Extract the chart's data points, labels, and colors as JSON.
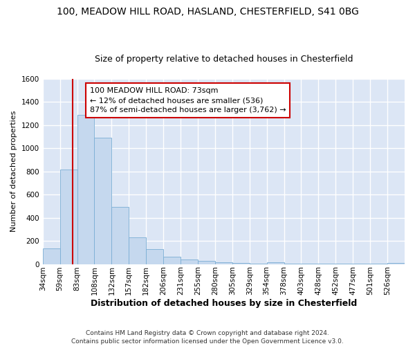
{
  "title_line1": "100, MEADOW HILL ROAD, HASLAND, CHESTERFIELD, S41 0BG",
  "title_line2": "Size of property relative to detached houses in Chesterfield",
  "xlabel": "Distribution of detached houses by size in Chesterfield",
  "ylabel": "Number of detached properties",
  "footnote": "Contains HM Land Registry data © Crown copyright and database right 2024.\nContains public sector information licensed under the Open Government Licence v3.0.",
  "bar_color": "#c5d8ee",
  "bar_edge_color": "#7aadd4",
  "background_color": "#dce6f5",
  "grid_color": "#ffffff",
  "annotation_box_color": "#cc0000",
  "annotation_line_color": "#cc0000",
  "categories": [
    "34sqm",
    "59sqm",
    "83sqm",
    "108sqm",
    "132sqm",
    "157sqm",
    "182sqm",
    "206sqm",
    "231sqm",
    "255sqm",
    "280sqm",
    "305sqm",
    "329sqm",
    "354sqm",
    "378sqm",
    "403sqm",
    "428sqm",
    "452sqm",
    "477sqm",
    "501sqm",
    "526sqm"
  ],
  "bar_heights": [
    135,
    815,
    1290,
    1090,
    495,
    230,
    130,
    65,
    37,
    27,
    15,
    8,
    5,
    15,
    3,
    2,
    2,
    2,
    1,
    2,
    12
  ],
  "property_line_x": 1.72,
  "annotation_text": "100 MEADOW HILL ROAD: 73sqm\n← 12% of detached houses are smaller (536)\n87% of semi-detached houses are larger (3,762) →",
  "ylim": [
    0,
    1600
  ],
  "yticks": [
    0,
    200,
    400,
    600,
    800,
    1000,
    1200,
    1400,
    1600
  ],
  "title1_fontsize": 10,
  "title2_fontsize": 9,
  "ylabel_fontsize": 8,
  "xlabel_fontsize": 9,
  "tick_fontsize": 7.5,
  "annot_fontsize": 8,
  "footnote_fontsize": 6.5
}
